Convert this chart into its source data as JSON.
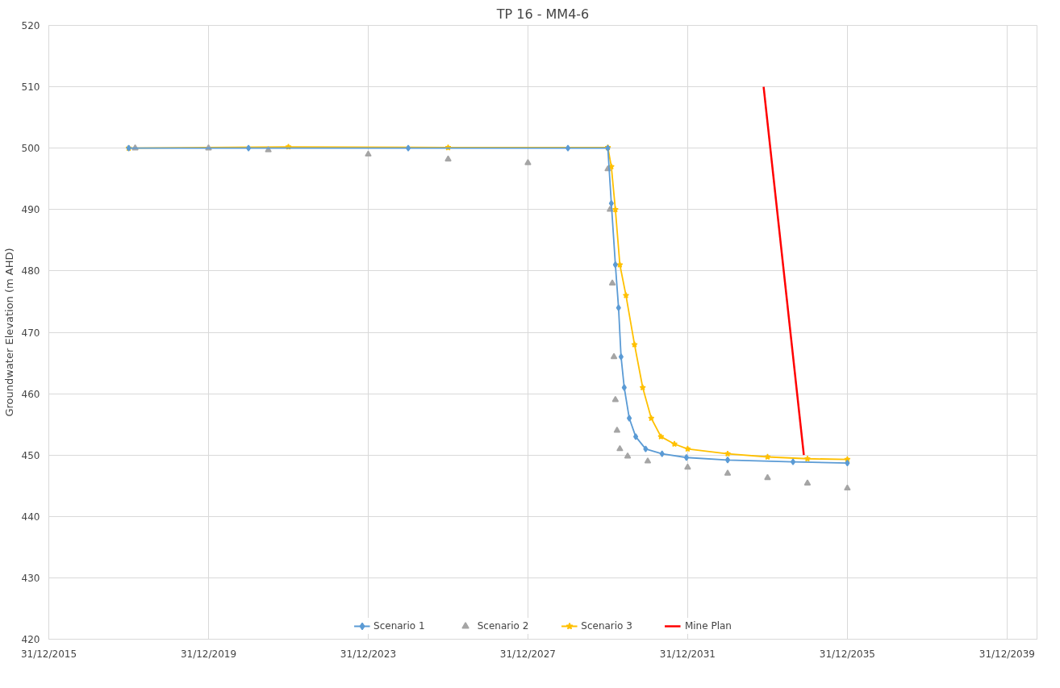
{
  "chart_data": {
    "type": "line",
    "title": "TP 16 - MM4-6",
    "ylabel": "Groundwater Elevation (m AHD)",
    "xlim": [
      "2015-12-31",
      "2040-09-30"
    ],
    "xticks": [
      {
        "value": "2015-12-31",
        "label": "31/12/2015"
      },
      {
        "value": "2019-12-31",
        "label": "31/12/2019"
      },
      {
        "value": "2023-12-31",
        "label": "31/12/2023"
      },
      {
        "value": "2027-12-31",
        "label": "31/12/2027"
      },
      {
        "value": "2031-12-31",
        "label": "31/12/2031"
      },
      {
        "value": "2035-12-31",
        "label": "31/12/2035"
      },
      {
        "value": "2039-12-31",
        "label": "31/12/2039"
      }
    ],
    "ylim": [
      420,
      520
    ],
    "yticks": [
      420,
      430,
      440,
      450,
      460,
      470,
      480,
      490,
      500,
      510,
      520
    ],
    "grid": true,
    "legend": "bottom",
    "series": [
      {
        "name": "Scenario 1",
        "color": "#5b9bd5",
        "marker": "diamond",
        "x": [
          "2017-12-31",
          "2020-12-31",
          "2024-12-31",
          "2028-12-31",
          "2029-12-31",
          "2030-02-01",
          "2030-03-10",
          "2030-04-08",
          "2030-05-01",
          "2030-05-30",
          "2030-07-15",
          "2030-09-12",
          "2030-12-12",
          "2031-05-11",
          "2031-12-20",
          "2032-12-31",
          "2034-08-21",
          "2035-12-31"
        ],
        "values": [
          500,
          500,
          500,
          500,
          500,
          491,
          481,
          474,
          466,
          461,
          456,
          453,
          451,
          450.2,
          449.6,
          449.2,
          448.9,
          448.7
        ]
      },
      {
        "name": "Scenario 2",
        "color": "#a5a5a5",
        "type": "scatter",
        "marker": "triangle",
        "x": [
          "2018-02-28",
          "2019-12-31",
          "2021-06-30",
          "2023-12-31",
          "2025-12-31",
          "2027-12-31",
          "2029-12-31",
          "2030-01-20",
          "2030-02-10",
          "2030-02-25",
          "2030-03-10",
          "2030-03-25",
          "2030-04-20",
          "2030-06-30",
          "2030-12-31",
          "2031-12-31",
          "2032-12-31",
          "2033-12-31",
          "2034-12-31",
          "2035-12-31"
        ],
        "values": [
          500,
          500,
          499.7,
          499,
          498.2,
          497.6,
          496.6,
          490,
          478,
          466,
          459,
          454,
          451,
          449.8,
          449,
          448,
          447,
          446.3,
          445.4,
          444.6
        ]
      },
      {
        "name": "Scenario 3",
        "color": "#ffc000",
        "marker": "star",
        "x": [
          "2017-12-31",
          "2021-12-31",
          "2025-12-31",
          "2029-12-31",
          "2030-02-01",
          "2030-03-10",
          "2030-04-20",
          "2030-06-15",
          "2030-09-01",
          "2030-11-15",
          "2031-02-01",
          "2031-05-01",
          "2031-09-01",
          "2031-12-31",
          "2032-12-31",
          "2033-12-31",
          "2034-12-31",
          "2035-12-31"
        ],
        "values": [
          500,
          500.2,
          500.1,
          500.1,
          497,
          490,
          481,
          476,
          468,
          461,
          456,
          453,
          451.8,
          451,
          450.2,
          449.7,
          449.4,
          449.3
        ]
      },
      {
        "name": "Mine Plan",
        "color": "#ff0000",
        "marker": "none",
        "x": [
          "2033-11-25",
          "2034-11-28"
        ],
        "values": [
          510,
          450
        ]
      }
    ]
  }
}
